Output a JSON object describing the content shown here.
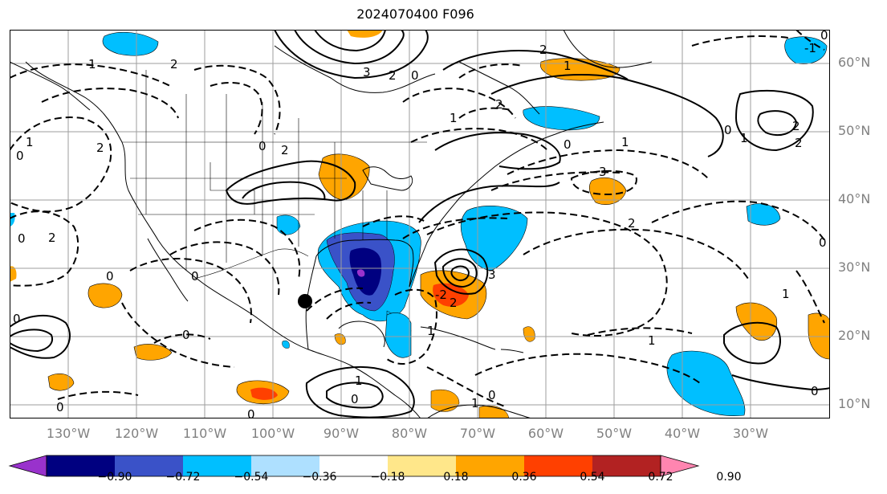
{
  "title": "2024070400 F096",
  "lat_labels": [
    "60°N",
    "50°N",
    "40°N",
    "30°N",
    "20°N",
    "10°N"
  ],
  "lon_labels": [
    "130°W",
    "120°W",
    "110°W",
    "100°W",
    "90°W",
    "80°W",
    "70°W",
    "60°W",
    "50°W",
    "40°W",
    "30°W"
  ],
  "contour_labels": [
    "1",
    "2",
    "2",
    "3",
    "2",
    "1",
    "0",
    "-1",
    "0",
    "2",
    "1",
    "2",
    "2",
    "1",
    "0",
    "1",
    "0",
    "2",
    "0",
    "1",
    "0",
    "2",
    "3",
    "2",
    "0",
    "0",
    "1",
    "0",
    "0",
    "0",
    "0",
    "2",
    "0",
    "1",
    "-2",
    "3",
    "2",
    "1",
    "0",
    "1",
    "0",
    "1",
    "0",
    "0"
  ],
  "colorbar": {
    "ticks": [
      "−0.90",
      "−0.72",
      "−0.54",
      "−0.36",
      "−0.18",
      "0.18",
      "0.36",
      "0.54",
      "0.72",
      "0.90"
    ],
    "colors": [
      "#9932cc",
      "#000080",
      "#3a52c8",
      "#00bfff",
      "#aee0ff",
      "#ffffff",
      "#ffe78a",
      "#ffa500",
      "#ff4000",
      "#b22222",
      "#ff85b0"
    ]
  },
  "colors": {
    "coast": "#000000",
    "grid": "#9e9e9e",
    "contour": "#000000",
    "label_gray": "#808080"
  }
}
